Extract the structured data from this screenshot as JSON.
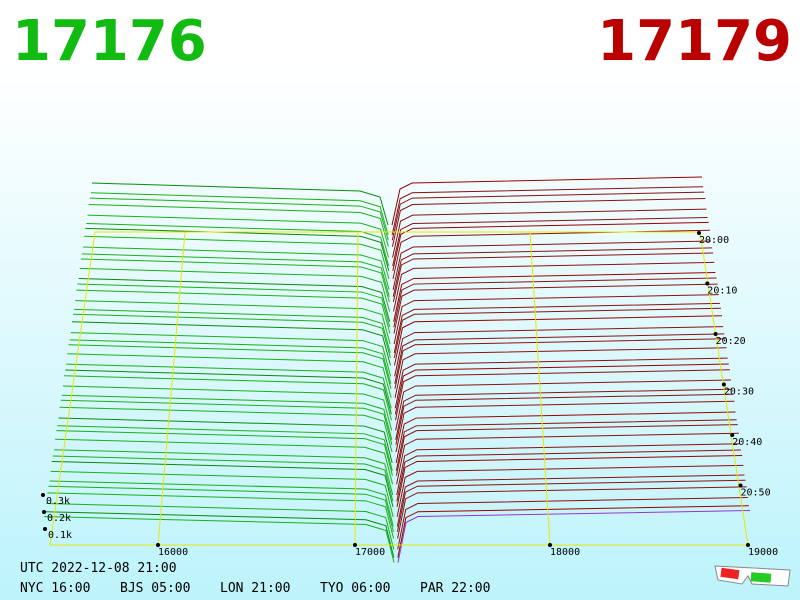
{
  "header": {
    "bid": "17176",
    "ask": "17179"
  },
  "price_axis": [
    "16000",
    "17000",
    "18000",
    "19000"
  ],
  "depth_axis": [
    "0.3k",
    "0.2k",
    "0.1k"
  ],
  "time_axis": [
    "20:00",
    "20:10",
    "20:20",
    "20:30",
    "20:40",
    "20:50"
  ],
  "footer": {
    "utc": "UTC 2022-12-08 21:00",
    "clocks": [
      "NYC 16:00",
      "BJS 05:00",
      "LON 21:00",
      "TYO 06:00",
      "PAR 22:00"
    ]
  }
}
